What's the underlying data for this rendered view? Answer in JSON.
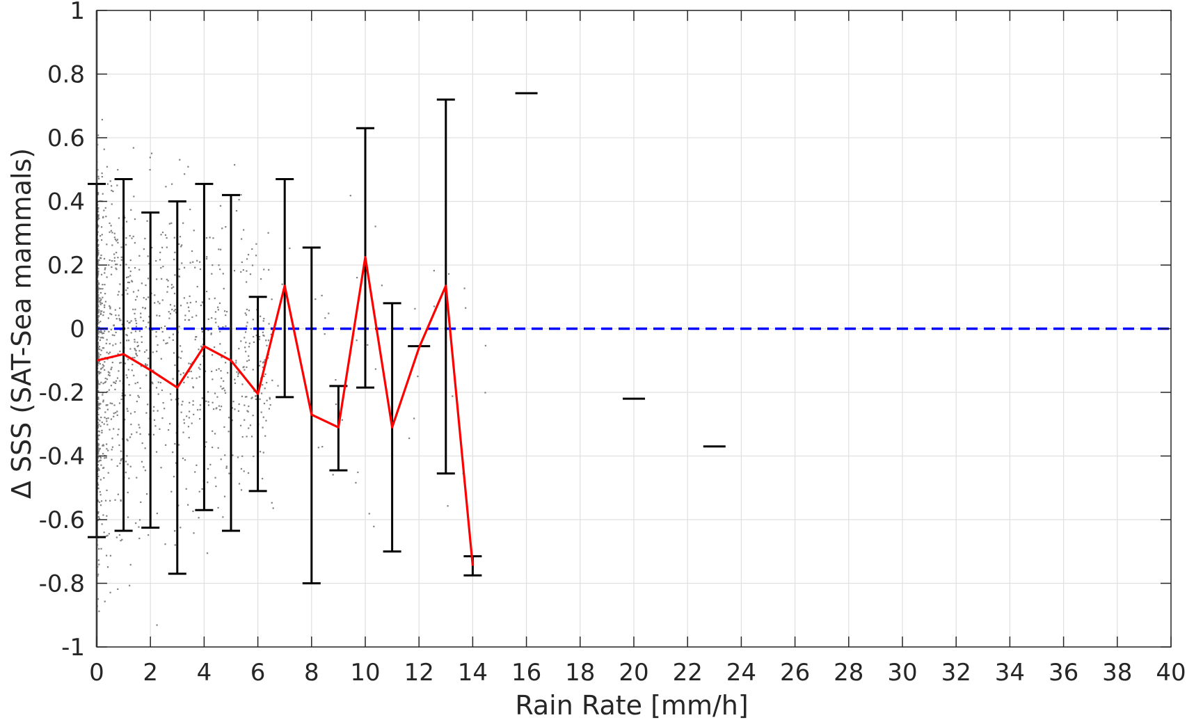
{
  "chart_data": {
    "type": "scatter",
    "xlabel": "Rain Rate [mm/h]",
    "ylabel": "Δ SSS (SAT-Sea mammals)",
    "xlim": [
      0,
      40
    ],
    "ylim": [
      -1,
      1
    ],
    "grid": true,
    "xticks": [
      "0",
      "2",
      "4",
      "6",
      "8",
      "10",
      "12",
      "14",
      "16",
      "18",
      "20",
      "22",
      "24",
      "26",
      "28",
      "30",
      "32",
      "34",
      "36",
      "38",
      "40"
    ],
    "yticks": [
      "-1",
      "-0.8",
      "-0.6",
      "-0.4",
      "-0.2",
      "0",
      "0.2",
      "0.4",
      "0.6",
      "0.8",
      "1"
    ],
    "colors": {
      "scatter": "#808080",
      "mean_line": "#ff0000",
      "error_bars": "#000000",
      "zero_line": "#0000ff",
      "grid": "#e0e0e0"
    },
    "zero_line": {
      "y": 0,
      "style": "dashed"
    },
    "mean_series": {
      "x": [
        0,
        1,
        2,
        3,
        4,
        5,
        6,
        7,
        8,
        9,
        10,
        11,
        12,
        13,
        14
      ],
      "y": [
        -0.1,
        -0.08,
        -0.13,
        -0.185,
        -0.055,
        -0.1,
        -0.205,
        0.135,
        -0.27,
        -0.31,
        0.225,
        -0.31,
        -0.06,
        0.135,
        -0.745
      ]
    },
    "error_bars": [
      {
        "x": 0,
        "low": -0.655,
        "high": 0.455
      },
      {
        "x": 1,
        "low": -0.635,
        "high": 0.47
      },
      {
        "x": 2,
        "low": -0.625,
        "high": 0.365
      },
      {
        "x": 3,
        "low": -0.77,
        "high": 0.4
      },
      {
        "x": 4,
        "low": -0.57,
        "high": 0.455
      },
      {
        "x": 5,
        "low": -0.635,
        "high": 0.42
      },
      {
        "x": 6,
        "low": -0.51,
        "high": 0.1
      },
      {
        "x": 7,
        "low": -0.215,
        "high": 0.47
      },
      {
        "x": 8,
        "low": -0.8,
        "high": 0.255
      },
      {
        "x": 9,
        "low": -0.445,
        "high": -0.18
      },
      {
        "x": 10,
        "low": -0.185,
        "high": 0.63
      },
      {
        "x": 11,
        "low": -0.7,
        "high": 0.08
      },
      {
        "x": 12,
        "low": -0.055,
        "high": -0.055
      },
      {
        "x": 13,
        "low": -0.455,
        "high": 0.72
      },
      {
        "x": 14,
        "low": -0.775,
        "high": -0.715
      },
      {
        "x": 16,
        "low": 0.74,
        "high": 0.74
      },
      {
        "x": 20,
        "low": -0.22,
        "high": -0.22
      },
      {
        "x": 23,
        "low": -0.37,
        "high": -0.37
      }
    ]
  }
}
